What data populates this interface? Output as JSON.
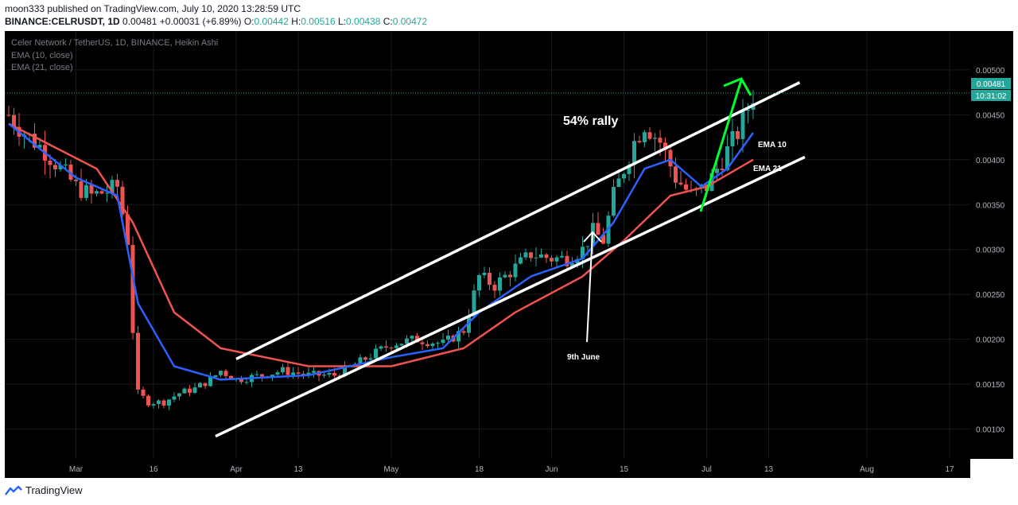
{
  "header": {
    "published": "moon333 published on TradingView.com, July 10, 2020 13:28:59 UTC",
    "symbol": "BINANCE:CELRUSDT, 1D",
    "last": "0.00481",
    "change": "+0.00031 (+6.89%)",
    "o_label": "O:",
    "o": "0.00442",
    "h_label": "H:",
    "h": "0.00516",
    "l_label": "L:",
    "l": "0.00438",
    "c_label": "C:",
    "c": "0.00472"
  },
  "legend": {
    "title": "Celer Network / TetherUS, 1D, BINANCE, Heikin Ashi",
    "ema10": "EMA (10, close)",
    "ema21": "EMA (21, close)"
  },
  "price_badge": {
    "value": "0.00481",
    "countdown": "10:31:02"
  },
  "annotations": {
    "rally": "54% rally",
    "ema10": "EMA 10",
    "ema21": "EMA 21",
    "june9": "9th June"
  },
  "brand": "TradingView",
  "colors": {
    "background": "#000000",
    "up_candle": "#26a69a",
    "down_candle": "#ef5350",
    "ema10": "#2962ff",
    "ema21": "#ef5350",
    "channel": "#ffffff",
    "arrow": "#00ff2a"
  },
  "chart_data": {
    "type": "candlestick",
    "title": "Celer Network / TetherUS, 1D, BINANCE, Heikin Ashi",
    "y_ticks": [
      0.005,
      0.0045,
      0.004,
      0.0035,
      0.003,
      0.0025,
      0.002,
      0.0015,
      0.001
    ],
    "y_tick_labels": [
      "0.00500",
      "0.00450",
      "0.00400",
      "0.00350",
      "0.00300",
      "0.00250",
      "0.00200",
      "0.00150",
      "0.00100"
    ],
    "x_ticks": [
      {
        "label": "Mar",
        "date": "2020-03-01"
      },
      {
        "label": "16",
        "date": "2020-03-16"
      },
      {
        "label": "Apr",
        "date": "2020-04-01"
      },
      {
        "label": "13",
        "date": "2020-04-13"
      },
      {
        "label": "May",
        "date": "2020-05-01"
      },
      {
        "label": "18",
        "date": "2020-05-18"
      },
      {
        "label": "Jun",
        "date": "2020-06-01"
      },
      {
        "label": "15",
        "date": "2020-06-15"
      },
      {
        "label": "Jul",
        "date": "2020-07-01"
      },
      {
        "label": "13",
        "date": "2020-07-13"
      },
      {
        "label": "Aug",
        "date": "2020-08-01"
      },
      {
        "label": "17",
        "date": "2020-08-17"
      }
    ],
    "current_price": 0.00481,
    "series_close": {
      "name": "CELRUSDT",
      "points": [
        [
          "2020-02-17",
          0.0045
        ],
        [
          "2020-02-20",
          0.0043
        ],
        [
          "2020-02-24",
          0.0041
        ],
        [
          "2020-02-27",
          0.0039
        ],
        [
          "2020-03-01",
          0.0037
        ],
        [
          "2020-03-04",
          0.0036
        ],
        [
          "2020-03-07",
          0.00365
        ],
        [
          "2020-03-09",
          0.0037
        ],
        [
          "2020-03-11",
          0.0031
        ],
        [
          "2020-03-12",
          0.0021
        ],
        [
          "2020-03-13",
          0.0014
        ],
        [
          "2020-03-15",
          0.0013
        ],
        [
          "2020-03-18",
          0.0013
        ],
        [
          "2020-03-21",
          0.0014
        ],
        [
          "2020-03-24",
          0.00145
        ],
        [
          "2020-03-27",
          0.00155
        ],
        [
          "2020-03-29",
          0.00165
        ],
        [
          "2020-04-01",
          0.00155
        ],
        [
          "2020-04-06",
          0.0016
        ],
        [
          "2020-04-10",
          0.00165
        ],
        [
          "2020-04-15",
          0.0016
        ],
        [
          "2020-04-20",
          0.0016
        ],
        [
          "2020-04-25",
          0.00175
        ],
        [
          "2020-05-01",
          0.00195
        ],
        [
          "2020-05-06",
          0.002
        ],
        [
          "2020-05-11",
          0.00195
        ],
        [
          "2020-05-15",
          0.0021
        ],
        [
          "2020-05-18",
          0.0027
        ],
        [
          "2020-05-21",
          0.0026
        ],
        [
          "2020-05-25",
          0.0028
        ],
        [
          "2020-05-28",
          0.00295
        ],
        [
          "2020-06-01",
          0.0029
        ],
        [
          "2020-06-04",
          0.0029
        ],
        [
          "2020-06-07",
          0.003
        ],
        [
          "2020-06-09",
          0.0032
        ],
        [
          "2020-06-11",
          0.0031
        ],
        [
          "2020-06-13",
          0.0036
        ],
        [
          "2020-06-15",
          0.0039
        ],
        [
          "2020-06-17",
          0.0042
        ],
        [
          "2020-06-19",
          0.0044
        ],
        [
          "2020-06-22",
          0.0042
        ],
        [
          "2020-06-25",
          0.0038
        ],
        [
          "2020-06-28",
          0.0036
        ],
        [
          "2020-07-01",
          0.0037
        ],
        [
          "2020-07-04",
          0.004
        ],
        [
          "2020-07-07",
          0.0043
        ],
        [
          "2020-07-10",
          0.00472
        ]
      ]
    },
    "series_ema10": {
      "name": "EMA (10, close)",
      "points": [
        [
          "2020-02-17",
          0.0044
        ],
        [
          "2020-03-01",
          0.0038
        ],
        [
          "2020-03-09",
          0.0036
        ],
        [
          "2020-03-13",
          0.0024
        ],
        [
          "2020-03-20",
          0.0017
        ],
        [
          "2020-03-29",
          0.00155
        ],
        [
          "2020-04-15",
          0.0016
        ],
        [
          "2020-05-01",
          0.0018
        ],
        [
          "2020-05-11",
          0.0019
        ],
        [
          "2020-05-18",
          0.0023
        ],
        [
          "2020-05-28",
          0.0027
        ],
        [
          "2020-06-07",
          0.0029
        ],
        [
          "2020-06-13",
          0.0033
        ],
        [
          "2020-06-19",
          0.0039
        ],
        [
          "2020-06-24",
          0.004
        ],
        [
          "2020-06-30",
          0.0037
        ],
        [
          "2020-07-05",
          0.0039
        ],
        [
          "2020-07-10",
          0.0043
        ]
      ]
    },
    "series_ema21": {
      "name": "EMA (21, close)",
      "points": [
        [
          "2020-02-17",
          0.0044
        ],
        [
          "2020-03-05",
          0.0039
        ],
        [
          "2020-03-12",
          0.0033
        ],
        [
          "2020-03-20",
          0.0023
        ],
        [
          "2020-03-29",
          0.0019
        ],
        [
          "2020-04-15",
          0.0017
        ],
        [
          "2020-05-01",
          0.0017
        ],
        [
          "2020-05-15",
          0.0019
        ],
        [
          "2020-05-25",
          0.0023
        ],
        [
          "2020-06-07",
          0.0027
        ],
        [
          "2020-06-15",
          0.0031
        ],
        [
          "2020-06-24",
          0.0036
        ],
        [
          "2020-07-01",
          0.0037
        ],
        [
          "2020-07-10",
          0.004
        ]
      ]
    },
    "channel_upper": [
      [
        "2020-04-01",
        0.00178
      ],
      [
        "2020-07-19",
        0.00486
      ]
    ],
    "channel_lower": [
      [
        "2020-03-28",
        0.00092
      ],
      [
        "2020-07-20",
        0.00403
      ]
    ]
  }
}
